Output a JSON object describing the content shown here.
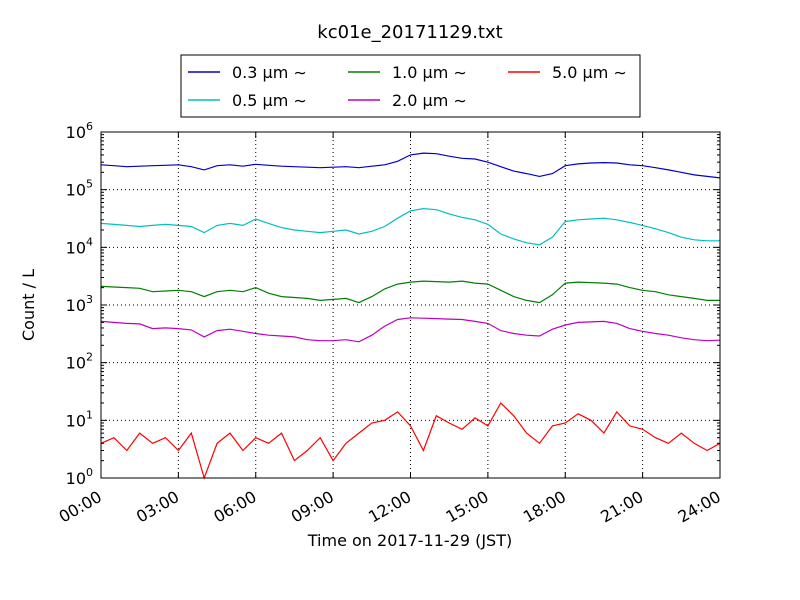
{
  "chart_data": {
    "type": "line",
    "title": "kc01e_20171129.txt",
    "xlabel": "Time on 2017-11-29 (JST)",
    "ylabel": "Count / L",
    "yscale": "log",
    "ylim": [
      1,
      1000000
    ],
    "xlim": [
      "00:00",
      "24:00"
    ],
    "grid": true,
    "legend_placement": "top-center",
    "x_ticks": [
      "00:00",
      "03:00",
      "06:00",
      "09:00",
      "12:00",
      "15:00",
      "18:00",
      "21:00",
      "24:00"
    ],
    "y_ticks": [
      {
        "base": "10",
        "exp": "0"
      },
      {
        "base": "10",
        "exp": "1"
      },
      {
        "base": "10",
        "exp": "2"
      },
      {
        "base": "10",
        "exp": "3"
      },
      {
        "base": "10",
        "exp": "4"
      },
      {
        "base": "10",
        "exp": "5"
      },
      {
        "base": "10",
        "exp": "6"
      }
    ],
    "x_hours": [
      0,
      0.5,
      1,
      1.5,
      2,
      2.5,
      3,
      3.5,
      4,
      4.5,
      5,
      5.5,
      6,
      6.5,
      7,
      7.5,
      8,
      8.5,
      9,
      9.5,
      10,
      10.5,
      11,
      11.5,
      12,
      12.5,
      13,
      13.5,
      14,
      14.5,
      15,
      15.5,
      16,
      16.5,
      17,
      17.5,
      18,
      18.5,
      19,
      19.5,
      20,
      20.5,
      21,
      21.5,
      22,
      22.5,
      23,
      23.5,
      24
    ],
    "series": [
      {
        "name": "0.3 μm ∼",
        "color": "#0000cc",
        "values": [
          270000,
          260000,
          250000,
          255000,
          260000,
          265000,
          270000,
          250000,
          220000,
          260000,
          270000,
          255000,
          275000,
          265000,
          255000,
          250000,
          245000,
          240000,
          245000,
          250000,
          240000,
          255000,
          270000,
          310000,
          400000,
          430000,
          420000,
          380000,
          350000,
          340000,
          300000,
          250000,
          210000,
          190000,
          170000,
          190000,
          260000,
          280000,
          290000,
          295000,
          290000,
          270000,
          260000,
          240000,
          220000,
          200000,
          180000,
          170000,
          160000
        ]
      },
      {
        "name": "0.5 μm ∼",
        "color": "#00bfbf",
        "values": [
          26000,
          25000,
          24000,
          23000,
          24000,
          25000,
          24000,
          23000,
          18000,
          24000,
          26000,
          24000,
          31000,
          26000,
          22000,
          20000,
          19000,
          18000,
          19000,
          20000,
          17000,
          19000,
          23000,
          32000,
          43000,
          47000,
          45000,
          38000,
          33000,
          30000,
          25000,
          17000,
          14000,
          12000,
          11000,
          15000,
          28000,
          30000,
          31000,
          32000,
          30000,
          27000,
          24000,
          21000,
          18000,
          15000,
          13500,
          13000,
          13000
        ]
      },
      {
        "name": "1.0 μm ∼",
        "color": "#008000",
        "values": [
          2100,
          2050,
          2000,
          1950,
          1700,
          1750,
          1800,
          1700,
          1400,
          1700,
          1800,
          1700,
          2000,
          1600,
          1400,
          1350,
          1300,
          1200,
          1250,
          1300,
          1100,
          1400,
          1900,
          2300,
          2500,
          2600,
          2550,
          2500,
          2600,
          2400,
          2300,
          1800,
          1400,
          1200,
          1100,
          1500,
          2400,
          2500,
          2450,
          2400,
          2300,
          2000,
          1800,
          1700,
          1500,
          1400,
          1300,
          1200,
          1200
        ]
      },
      {
        "name": "2.0 μm ∼",
        "color": "#bf00bf",
        "values": [
          520,
          500,
          480,
          470,
          390,
          400,
          390,
          370,
          280,
          360,
          380,
          350,
          320,
          300,
          290,
          280,
          250,
          240,
          240,
          250,
          230,
          300,
          430,
          560,
          600,
          590,
          580,
          570,
          560,
          520,
          480,
          360,
          320,
          300,
          290,
          380,
          450,
          500,
          510,
          520,
          480,
          390,
          350,
          320,
          300,
          270,
          250,
          240,
          245
        ]
      },
      {
        "name": "5.0 μm ∼",
        "color": "#ff0000",
        "values": [
          4,
          5,
          3,
          6,
          4,
          5,
          3,
          6,
          1,
          4,
          6,
          3,
          5,
          4,
          6,
          2,
          3,
          5,
          2,
          4,
          6,
          9,
          10,
          14,
          8,
          3,
          12,
          9,
          7,
          11,
          8,
          20,
          12,
          6,
          4,
          8,
          9,
          13,
          10,
          6,
          14,
          8,
          7,
          5,
          4,
          6,
          4,
          3,
          4
        ]
      }
    ]
  }
}
